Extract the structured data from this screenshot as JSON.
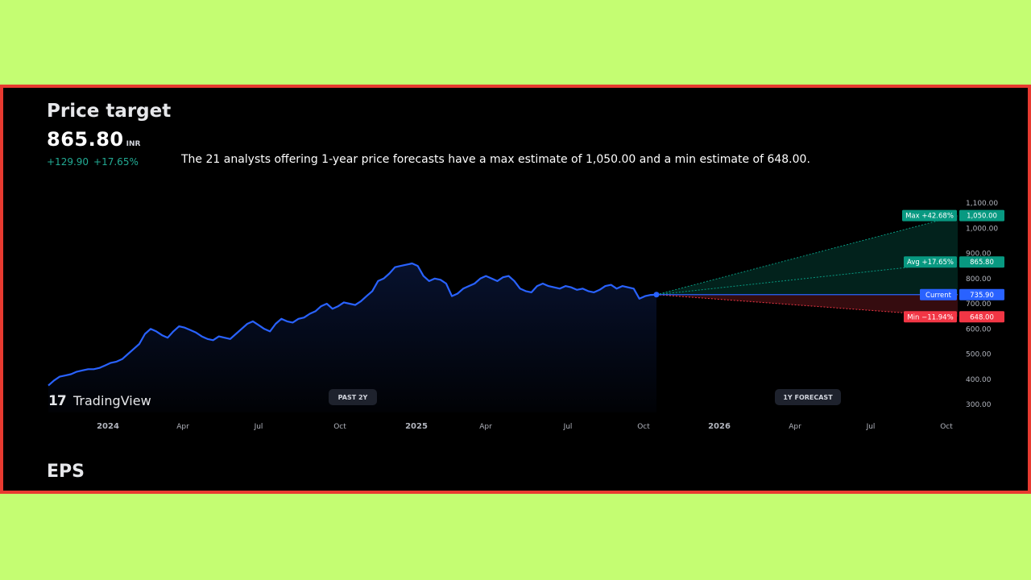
{
  "header": {
    "title": "Price target",
    "price": "865.80",
    "currency": "INR",
    "change_abs": "+129.90",
    "change_pct": "+17.65%",
    "summary": "The 21 analysts offering 1-year price forecasts have a max estimate of 1,050.00 and a min estimate of 648.00."
  },
  "brand": {
    "logo_mark": "17",
    "name": "TradingView"
  },
  "footer": {
    "next_section": "EPS"
  },
  "colors": {
    "price_line": "#2962ff",
    "max": "#089981",
    "avg": "#089981",
    "current": "#2962ff",
    "min": "#f23645",
    "positive_text": "#22ab94"
  },
  "chart_data": {
    "type": "line",
    "x_labels": [
      "2024",
      "Apr",
      "Jul",
      "Oct",
      "2025",
      "Apr",
      "Jul",
      "Oct",
      "2026",
      "Apr",
      "Jul",
      "Oct"
    ],
    "y_ticks": [
      "300.00",
      "400.00",
      "500.00",
      "600.00",
      "700.00",
      "800.00",
      "900.00",
      "1,000.00",
      "1,100.00"
    ],
    "ylim": [
      300,
      1100
    ],
    "past_label": "PAST 2Y",
    "forecast_label": "1Y FORECAST",
    "history": [
      375,
      395,
      410,
      415,
      420,
      430,
      435,
      440,
      440,
      445,
      455,
      465,
      470,
      480,
      500,
      520,
      540,
      580,
      600,
      590,
      575,
      565,
      590,
      610,
      605,
      595,
      585,
      570,
      560,
      555,
      570,
      565,
      560,
      580,
      600,
      620,
      630,
      615,
      600,
      590,
      620,
      640,
      630,
      625,
      640,
      645,
      660,
      670,
      690,
      700,
      680,
      690,
      705,
      700,
      695,
      710,
      730,
      750,
      790,
      800,
      820,
      845,
      850,
      855,
      860,
      850,
      810,
      790,
      800,
      795,
      780,
      730,
      740,
      760,
      770,
      780,
      800,
      810,
      800,
      790,
      805,
      810,
      790,
      760,
      750,
      745,
      770,
      780,
      770,
      765,
      760,
      770,
      765,
      755,
      760,
      750,
      745,
      755,
      770,
      775,
      760,
      770,
      765,
      760,
      720,
      730,
      735,
      735.9
    ],
    "targets": {
      "max": {
        "label": "Max",
        "pct": "+42.68%",
        "value": "1,050.00",
        "num": 1050
      },
      "avg": {
        "label": "Avg",
        "pct": "+17.65%",
        "value": "865.80",
        "num": 865.8
      },
      "current": {
        "label": "Current",
        "value": "735.90",
        "num": 735.9
      },
      "min": {
        "label": "Min",
        "pct": "−11.94%",
        "value": "648.00",
        "num": 648
      }
    }
  }
}
